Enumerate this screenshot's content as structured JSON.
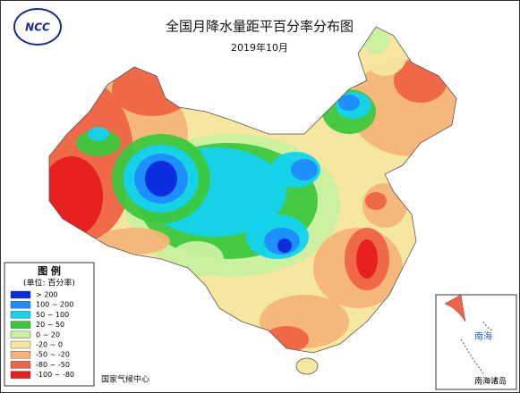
{
  "header": {
    "logo": "NCC",
    "title": "全国月降水量距平百分率分布图",
    "subtitle": "2019年10月"
  },
  "legend": {
    "title": "图 例",
    "unit": "(单位: 百分率)",
    "items": [
      {
        "label": "> 200",
        "color": "#0a28dc"
      },
      {
        "label": "100 ~ 200",
        "color": "#1e8cff"
      },
      {
        "label": "50 ~ 100",
        "color": "#14d2f0"
      },
      {
        "label": "20 ~ 50",
        "color": "#3cc83c"
      },
      {
        "label": "0 ~ 20",
        "color": "#c8f0a0"
      },
      {
        "label": "-20 ~ 0",
        "color": "#f5e6a0"
      },
      {
        "label": "-50 ~ -20",
        "color": "#f5b478"
      },
      {
        "label": "-80 ~ -50",
        "color": "#ee6446"
      },
      {
        "label": "-100 ~ -80",
        "color": "#e61e1e"
      }
    ]
  },
  "footer": "国家气候中心",
  "inset": {
    "title": "南海诸岛",
    "sea": "南海"
  }
}
